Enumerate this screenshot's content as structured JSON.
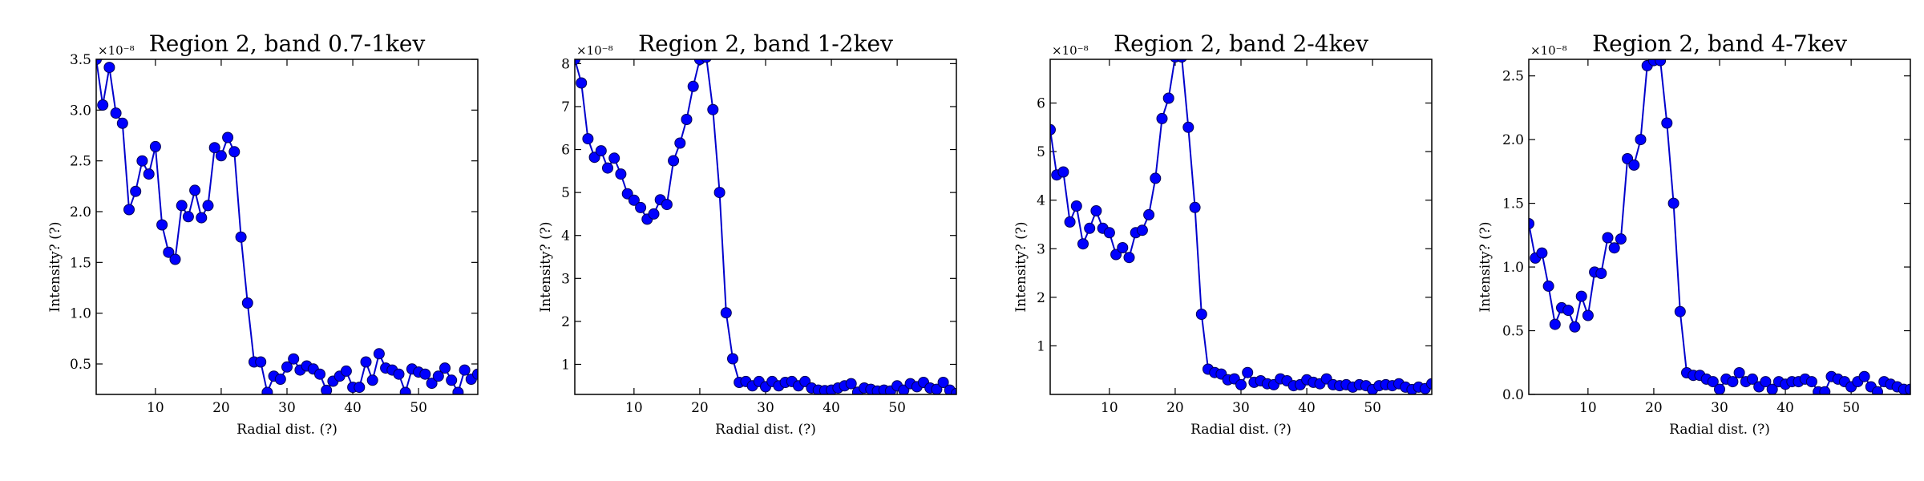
{
  "chart_data": [
    {
      "type": "line",
      "title": "Region 2, band 0.7-1kev",
      "xlabel": "Radial dist. (?)",
      "ylabel": "Intensity? (?)",
      "y_multiplier_label": "×10⁻⁸",
      "xlim": [
        1,
        59
      ],
      "ylim": [
        0.2,
        3.5
      ],
      "xticks": [
        10,
        20,
        30,
        40,
        50
      ],
      "yticks": [
        0.5,
        1.0,
        1.5,
        2.0,
        2.5,
        3.0,
        3.5
      ],
      "ytick_labels": [
        "0.5",
        "1.0",
        "1.5",
        "2.0",
        "2.5",
        "3.0",
        "3.5"
      ],
      "marker_color": "#0000ff",
      "line_color": "#0000cc",
      "x": [
        1,
        2,
        3,
        4,
        5,
        6,
        7,
        8,
        9,
        10,
        11,
        12,
        13,
        14,
        15,
        16,
        17,
        18,
        19,
        20,
        21,
        22,
        23,
        24,
        25,
        26,
        27,
        28,
        29,
        30,
        31,
        32,
        33,
        34,
        35,
        36,
        37,
        38,
        39,
        40,
        41,
        42,
        43,
        44,
        45,
        46,
        47,
        48,
        49,
        50,
        51,
        52,
        53,
        54,
        55,
        56,
        57,
        58,
        59
      ],
      "y": [
        3.5,
        3.05,
        3.42,
        2.97,
        2.87,
        2.02,
        2.2,
        2.5,
        2.37,
        2.64,
        1.87,
        1.6,
        1.53,
        2.06,
        1.95,
        2.21,
        1.94,
        2.06,
        2.63,
        2.55,
        2.73,
        2.59,
        1.75,
        1.1,
        0.52,
        0.52,
        0.22,
        0.38,
        0.35,
        0.47,
        0.55,
        0.44,
        0.48,
        0.45,
        0.4,
        0.24,
        0.33,
        0.38,
        0.43,
        0.27,
        0.27,
        0.52,
        0.34,
        0.6,
        0.46,
        0.44,
        0.4,
        0.22,
        0.45,
        0.42,
        0.4,
        0.31,
        0.38,
        0.46,
        0.34,
        0.22,
        0.44,
        0.35,
        0.4
      ]
    },
    {
      "type": "line",
      "title": "Region 2, band 1-2kev",
      "xlabel": "Radial dist. (?)",
      "ylabel": "Intensity? (?)",
      "y_multiplier_label": "×10⁻⁸",
      "xlim": [
        1,
        59
      ],
      "ylim": [
        0.3,
        8.1
      ],
      "xticks": [
        10,
        20,
        30,
        40,
        50
      ],
      "yticks": [
        1,
        2,
        3,
        4,
        5,
        6,
        7,
        8
      ],
      "ytick_labels": [
        "1",
        "2",
        "3",
        "4",
        "5",
        "6",
        "7",
        "8"
      ],
      "marker_color": "#0000ff",
      "line_color": "#0000cc",
      "x": [
        1,
        2,
        3,
        4,
        5,
        6,
        7,
        8,
        9,
        10,
        11,
        12,
        13,
        14,
        15,
        16,
        17,
        18,
        19,
        20,
        21,
        22,
        23,
        24,
        25,
        26,
        27,
        28,
        29,
        30,
        31,
        32,
        33,
        34,
        35,
        36,
        37,
        38,
        39,
        40,
        41,
        42,
        43,
        44,
        45,
        46,
        47,
        48,
        49,
        50,
        51,
        52,
        53,
        54,
        55,
        56,
        57,
        58,
        59
      ],
      "y": [
        8.1,
        7.55,
        6.25,
        5.82,
        5.97,
        5.57,
        5.8,
        5.43,
        4.97,
        4.82,
        4.65,
        4.38,
        4.5,
        4.83,
        4.72,
        5.74,
        6.15,
        6.7,
        7.47,
        8.1,
        8.15,
        6.93,
        5.0,
        2.2,
        1.13,
        0.58,
        0.6,
        0.5,
        0.6,
        0.48,
        0.6,
        0.5,
        0.58,
        0.6,
        0.5,
        0.6,
        0.45,
        0.4,
        0.39,
        0.4,
        0.45,
        0.5,
        0.55,
        0.35,
        0.45,
        0.42,
        0.38,
        0.4,
        0.38,
        0.5,
        0.4,
        0.55,
        0.48,
        0.58,
        0.45,
        0.42,
        0.58,
        0.4,
        0.32
      ]
    },
    {
      "type": "line",
      "title": "Region 2, band 2-4kev",
      "xlabel": "Radial dist. (?)",
      "ylabel": "Intensity? (?)",
      "y_multiplier_label": "×10⁻⁸",
      "xlim": [
        1,
        59
      ],
      "ylim": [
        0.0,
        6.9
      ],
      "xticks": [
        10,
        20,
        30,
        40,
        50
      ],
      "yticks": [
        1,
        2,
        3,
        4,
        5,
        6
      ],
      "ytick_labels": [
        "1",
        "2",
        "3",
        "4",
        "5",
        "6"
      ],
      "marker_color": "#0000ff",
      "line_color": "#0000cc",
      "x": [
        1,
        2,
        3,
        4,
        5,
        6,
        7,
        8,
        9,
        10,
        11,
        12,
        13,
        14,
        15,
        16,
        17,
        18,
        19,
        20,
        21,
        22,
        23,
        24,
        25,
        26,
        27,
        28,
        29,
        30,
        31,
        32,
        33,
        34,
        35,
        36,
        37,
        38,
        39,
        40,
        41,
        42,
        43,
        44,
        45,
        46,
        47,
        48,
        49,
        50,
        51,
        52,
        53,
        54,
        55,
        56,
        57,
        58,
        59
      ],
      "y": [
        5.45,
        4.52,
        4.58,
        3.55,
        3.88,
        3.1,
        3.42,
        3.78,
        3.42,
        3.33,
        2.88,
        3.02,
        2.82,
        3.33,
        3.38,
        3.7,
        4.45,
        5.68,
        6.1,
        6.95,
        6.95,
        5.5,
        3.85,
        1.65,
        0.52,
        0.45,
        0.42,
        0.3,
        0.32,
        0.2,
        0.45,
        0.25,
        0.28,
        0.22,
        0.2,
        0.32,
        0.28,
        0.18,
        0.2,
        0.3,
        0.25,
        0.22,
        0.32,
        0.2,
        0.18,
        0.2,
        0.15,
        0.2,
        0.18,
        0.1,
        0.18,
        0.2,
        0.18,
        0.22,
        0.15,
        0.1,
        0.15,
        0.12,
        0.22
      ]
    },
    {
      "type": "line",
      "title": "Region 2, band 4-7kev",
      "xlabel": "Radial dist. (?)",
      "ylabel": "Intensity? (?)",
      "y_multiplier_label": "×10⁻⁸",
      "xlim": [
        1,
        59
      ],
      "ylim": [
        0.0,
        2.63
      ],
      "xticks": [
        10,
        20,
        30,
        40,
        50
      ],
      "yticks": [
        0.0,
        0.5,
        1.0,
        1.5,
        2.0,
        2.5
      ],
      "ytick_labels": [
        "0.0",
        "0.5",
        "1.0",
        "1.5",
        "2.0",
        "2.5"
      ],
      "marker_color": "#0000ff",
      "line_color": "#0000cc",
      "x": [
        1,
        2,
        3,
        4,
        5,
        6,
        7,
        8,
        9,
        10,
        11,
        12,
        13,
        14,
        15,
        16,
        17,
        18,
        19,
        20,
        21,
        22,
        23,
        24,
        25,
        26,
        27,
        28,
        29,
        30,
        31,
        32,
        33,
        34,
        35,
        36,
        37,
        38,
        39,
        40,
        41,
        42,
        43,
        44,
        45,
        46,
        47,
        48,
        49,
        50,
        51,
        52,
        53,
        54,
        55,
        56,
        57,
        58,
        59
      ],
      "y": [
        1.34,
        1.07,
        1.11,
        0.85,
        0.55,
        0.68,
        0.66,
        0.53,
        0.77,
        0.62,
        0.96,
        0.95,
        1.23,
        1.15,
        1.22,
        1.85,
        1.8,
        2.0,
        2.58,
        2.62,
        2.62,
        2.13,
        1.5,
        0.65,
        0.17,
        0.15,
        0.15,
        0.12,
        0.1,
        0.04,
        0.12,
        0.1,
        0.17,
        0.1,
        0.12,
        0.06,
        0.1,
        0.04,
        0.1,
        0.08,
        0.1,
        0.1,
        0.12,
        0.1,
        0.02,
        0.02,
        0.14,
        0.12,
        0.1,
        0.06,
        0.1,
        0.14,
        0.06,
        0.02,
        0.1,
        0.08,
        0.06,
        0.04,
        0.04
      ]
    }
  ]
}
